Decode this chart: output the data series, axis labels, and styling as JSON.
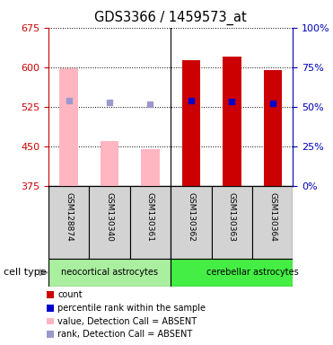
{
  "title": "GDS3366 / 1459573_at",
  "categories": [
    "GSM128874",
    "GSM130340",
    "GSM130361",
    "GSM130362",
    "GSM130363",
    "GSM130364"
  ],
  "cell_types": [
    {
      "label": "neocortical astrocytes",
      "color": "#AAEEA0"
    },
    {
      "label": "cerebellar astrocytes",
      "color": "#44EE44"
    }
  ],
  "bar_bottom": 375,
  "ylim": [
    375,
    675
  ],
  "yticks_left": [
    375,
    450,
    525,
    600,
    675
  ],
  "yticks_right": [
    0,
    25,
    50,
    75,
    100
  ],
  "ylabel_left_color": "#CC0000",
  "ylabel_right_color": "#0000BB",
  "absent_detection": [
    true,
    true,
    true,
    false,
    false,
    false
  ],
  "bar_values": [
    598,
    460,
    445,
    613,
    620,
    594
  ],
  "percentile_values": [
    537,
    533,
    530,
    537,
    536,
    532
  ],
  "percentile_color_absent": "#9999CC",
  "percentile_color_present": "#0000CC",
  "bar_color_absent": "#FFB6C1",
  "bar_color_present": "#CC0000",
  "bar_width": 0.45,
  "legend_items": [
    {
      "color": "#CC0000",
      "label": "count"
    },
    {
      "color": "#0000CC",
      "label": "percentile rank within the sample"
    },
    {
      "color": "#FFB6C1",
      "label": "value, Detection Call = ABSENT"
    },
    {
      "color": "#9999CC",
      "label": "rank, Detection Call = ABSENT"
    }
  ]
}
